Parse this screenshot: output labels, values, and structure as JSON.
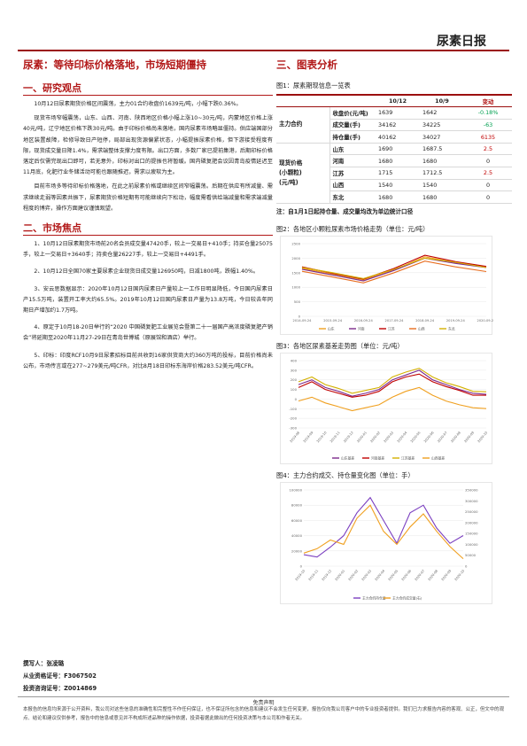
{
  "header": {
    "brand": "尿素日报"
  },
  "main_title": "尿素：等待印标价格落地，市场短期僵持",
  "left": {
    "section1_title": "一、研究观点",
    "section1_paras": [
      "10月12日尿素期货价格区间震荡，主力01合约收盘价1639元/吨，小幅下跌0.36%。",
      "现货市场窄幅震荡，山东、山西、河南、陕西地区价格小幅上涨10~30元/吨，内蒙地区价格上涨40元/吨，辽宁地区价格下跌30元/吨。由于印标价格尚未落地，国内尿素市场略显僵持。供应端国部分地区装置故障，检修导致日产短停，局部出现货源偏紧状态，小幅提振尿素价格，但下游接受程度有限，现货成交量日降1.4%，需求端整体支撑力度有限。出口方面，多数厂家已提前集港，后期印标价格落定后仅需完现出口即可，若无意外，印标对出口的提振也将暂缓。国内磷复肥会议因青岛疫情延迟至11月底，化肥行业冬储活动可能也跟随推迟，需求以疲软为主。",
      "目前市场多等待印标价格落地，在此之前尿素价格或继续区间窄幅震荡。后期在供应有所减量、需求继续走弱等因素共振下，尿素期货价格短期有可能继续向下松动，幅度需看供给端减量和需求端减量程度的博弈，操作方面建议谨慎观望。"
    ],
    "section2_title": "二、市场焦点",
    "section2_paras": [
      "1、10月12日尿素期货市场前20名会员成交量47420手，较上一交易日+410手；持买仓量25075手，较上一交易日+3640手；持卖仓量26227手，较上一交易日+4491手。",
      "2、10月12日全国70家主要尿素企业现货日成交量126950吨，日减1800吨，跌幅1.40%。",
      "3、安云思数据显示：2020年10月12日国内尿素日产量较上一工作日明显降低，今日国内尿素日产15.5万吨，装置开工率大约65.5%。2019年10月12日国内尿素日产量为13.8万吨，今日较去年同期日产增加约1.7万吨。",
      "4、原定于10月18-20日举行的“2020 中国磷复肥工业展览会暨第二十一届国产高浓度磷复肥产销会”将延期至2020年11月27-29日在青岛世博城（原展馆和酒店）举行。",
      "5、印标：印度RCF10月9日尿素招标目前共收到16家供货商大约360万吨的投标，目前价格尚未公布，市场传言或在277~279美元/吨CFR，对比8月18日印标东海岸价格283.52美元/吨CFR。"
    ]
  },
  "signature": {
    "author_label": "撰写人：张凌璐",
    "cert_label": "从业资格证号：F3067502",
    "invest_label": "投资咨询证号：Z0014869"
  },
  "disclaimer": {
    "title": "免责声明",
    "text": "本报告的信息均来源于公开资料，我公司对这些信息的准确性和完整性不作任何保证，也不保证所包含的信息和建议不会发生任何变更，报告仅向我公司客户中的专业投资者提供。我们已力求报告内容的客观、公正，但文中的观点、结论和建议仅供参考，报告中的信息或意见并不构成所述品种的操作依据，投资者据此做出的任何投资决策与本公司和作者无关。"
  },
  "right": {
    "section_title": "三、图表分析",
    "fig1_label": "图1：尿素期现信息一览表",
    "table": {
      "headers": [
        "",
        "",
        "10/12",
        "10/9",
        "变动"
      ],
      "group1": "主力合约",
      "group2": "现货价格\n(小颗粒)\n(元/吨)",
      "rows": [
        {
          "item": "收盘价(元/吨)",
          "a": "1639",
          "b": "1642",
          "chg": "-0.18%",
          "dir": "neg"
        },
        {
          "item": "成交量(手)",
          "a": "34162",
          "b": "34225",
          "chg": "-63",
          "dir": "neg"
        },
        {
          "item": "持仓量(手)",
          "a": "40162",
          "b": "34027",
          "chg": "6135",
          "dir": "pos"
        },
        {
          "item": "山东",
          "a": "1690",
          "b": "1687.5",
          "chg": "2.5",
          "dir": "pos"
        },
        {
          "item": "河南",
          "a": "1680",
          "b": "1680",
          "chg": "0",
          "dir": ""
        },
        {
          "item": "江苏",
          "a": "1715",
          "b": "1712.5",
          "chg": "2.5",
          "dir": "pos"
        },
        {
          "item": "山西",
          "a": "1540",
          "b": "1540",
          "chg": "0",
          "dir": ""
        },
        {
          "item": "东北",
          "a": "1680",
          "b": "1680",
          "chg": "0",
          "dir": ""
        }
      ],
      "note": "注：自1月1日起持仓量、成交量均改为单边统计口径"
    },
    "fig2_label": "图2：各地区小颗粒尿素市场价格走势（单位：元/吨）",
    "fig3_label": "图3：各地区尿素基差走势图（单位：元/吨）",
    "fig4_label": "图4：主力合约成交、持仓量变化图（单位：手）"
  },
  "chart_data": [
    {
      "type": "line",
      "title": "",
      "x": [
        "2014-09-24",
        "2015-09-24",
        "2016-09-24",
        "2017-09-24",
        "2018-09-24",
        "2019-09-24",
        "2020-09-24"
      ],
      "ylim": [
        0,
        2500
      ],
      "y_ticks": [
        "2500",
        "2000",
        "1500",
        "1000",
        "500",
        "0"
      ],
      "series": [
        {
          "name": "山东",
          "values": [
            1650,
            1450,
            1250,
            1600,
            2050,
            1850,
            1690
          ],
          "color": "#f0a020"
        },
        {
          "name": "河南",
          "values": [
            1620,
            1420,
            1220,
            1580,
            2000,
            1820,
            1680
          ],
          "color": "#7b2a8c"
        },
        {
          "name": "江苏",
          "values": [
            1700,
            1480,
            1280,
            1650,
            2100,
            1880,
            1715
          ],
          "color": "#c00000"
        },
        {
          "name": "山西",
          "values": [
            1550,
            1350,
            1150,
            1500,
            1900,
            1700,
            1540
          ],
          "color": "#e86d1f"
        },
        {
          "name": "东北",
          "values": [
            1680,
            1500,
            1300,
            1620,
            2000,
            1860,
            1680
          ],
          "color": "#d4b000"
        }
      ]
    },
    {
      "type": "line",
      "title": "",
      "x": [
        "2019-08",
        "2019-09",
        "2019-10",
        "2019-11",
        "2019-12",
        "2020-01",
        "2020-02",
        "2020-03",
        "2020-04",
        "2020-05",
        "2020-06",
        "2020-07",
        "2020-08",
        "2020-09",
        "2020-10"
      ],
      "ylim": [
        -300,
        400
      ],
      "y_ticks": [
        "400",
        "300",
        "200",
        "100",
        "0",
        "-100",
        "-200",
        "-300"
      ],
      "series": [
        {
          "name": "山东基差",
          "values": [
            150,
            200,
            120,
            80,
            30,
            60,
            100,
            200,
            250,
            300,
            200,
            150,
            100,
            60,
            50
          ],
          "color": "#7b2a8c"
        },
        {
          "name": "河南基差",
          "values": [
            120,
            180,
            100,
            60,
            20,
            40,
            80,
            180,
            230,
            260,
            180,
            130,
            90,
            40,
            40
          ],
          "color": "#c00000"
        },
        {
          "name": "江苏基差",
          "values": [
            180,
            230,
            150,
            110,
            60,
            90,
            120,
            230,
            280,
            320,
            230,
            170,
            130,
            80,
            76
          ],
          "color": "#d4b000"
        },
        {
          "name": "山西基差",
          "values": [
            -20,
            20,
            -40,
            -80,
            -120,
            -90,
            -60,
            20,
            80,
            120,
            40,
            -20,
            -60,
            -90,
            -99
          ],
          "color": "#f0a020"
        }
      ]
    },
    {
      "type": "line",
      "title": "",
      "x": [
        "2019-10",
        "2019-11",
        "2019-12",
        "2020-01",
        "2020-02",
        "2020-03",
        "2020-04",
        "2020-05",
        "2020-06",
        "2020-07",
        "2020-08",
        "2020-09",
        "2020-10"
      ],
      "y_ticks_left": [
        "100000",
        "80000",
        "60000",
        "40000",
        "20000",
        "0"
      ],
      "y_ticks_right": [
        "350000",
        "300000",
        "250000",
        "200000",
        "150000",
        "100000",
        "50000",
        "0"
      ],
      "series": [
        {
          "name": "主力合约持仓量",
          "values": [
            15000,
            12000,
            25000,
            40000,
            70000,
            90000,
            60000,
            30000,
            70000,
            80000,
            50000,
            30000,
            40162
          ],
          "color": "#7b3fc0"
        },
        {
          "name": "主力合约成交量(右)",
          "values": [
            60000,
            80000,
            120000,
            100000,
            220000,
            280000,
            160000,
            100000,
            180000,
            240000,
            160000,
            90000,
            34162
          ],
          "color": "#f0a020"
        }
      ]
    }
  ]
}
